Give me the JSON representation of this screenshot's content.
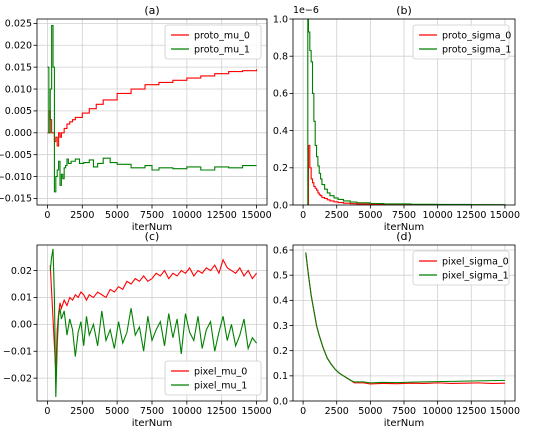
{
  "chart_data": [
    {
      "type": "line",
      "title": "(a)",
      "xlabel": "iterNum",
      "ylabel": "",
      "xlim": [
        -750,
        15750
      ],
      "ylim": [
        -0.0165,
        0.026
      ],
      "xticks": [
        0,
        2500,
        5000,
        7500,
        10000,
        12500,
        15000
      ],
      "yticks": [
        -0.015,
        -0.01,
        -0.005,
        0.0,
        0.005,
        0.01,
        0.015,
        0.02,
        0.025
      ],
      "ytick_labels": [
        "−0.015",
        "−0.010",
        "−0.005",
        "0.000",
        "0.005",
        "0.010",
        "0.015",
        "0.020",
        "0.025"
      ],
      "scale_label": "",
      "grid": true,
      "step": true,
      "legend": "upper right",
      "series": [
        {
          "name": "proto_mu_0",
          "color": "#ff0000",
          "x": [
            0,
            100,
            200,
            300,
            400,
            500,
            600,
            700,
            800,
            900,
            1000,
            1200,
            1400,
            1600,
            1800,
            2000,
            2500,
            3000,
            3500,
            4000,
            5000,
            6000,
            7000,
            8000,
            9000,
            10000,
            11000,
            12000,
            13000,
            14000,
            15000
          ],
          "y": [
            0.0,
            0.005,
            0.003,
            0.0,
            0.0,
            -0.002,
            -0.001,
            -0.003,
            0.0,
            -0.001,
            0.0,
            0.001,
            0.002,
            0.0025,
            0.003,
            0.0035,
            0.0045,
            0.0055,
            0.0065,
            0.0075,
            0.009,
            0.01,
            0.011,
            0.0115,
            0.012,
            0.0125,
            0.013,
            0.0135,
            0.014,
            0.0142,
            0.0145
          ]
        },
        {
          "name": "proto_mu_1",
          "color": "#008000",
          "x": [
            0,
            100,
            200,
            300,
            400,
            500,
            600,
            700,
            800,
            900,
            1000,
            1100,
            1200,
            1300,
            1400,
            1500,
            1700,
            2000,
            2300,
            2600,
            3000,
            3300,
            3600,
            4000,
            4500,
            5000,
            6000,
            7000,
            7500,
            8000,
            9000,
            10000,
            11000,
            12000,
            13000,
            14000,
            15000
          ],
          "y": [
            0.015,
            0.0,
            0.01,
            0.0245,
            0.015,
            -0.0135,
            -0.01,
            -0.0085,
            -0.0065,
            -0.012,
            -0.0095,
            -0.0105,
            -0.008,
            -0.0075,
            -0.006,
            -0.007,
            -0.0065,
            -0.006,
            -0.007,
            -0.0068,
            -0.0062,
            -0.0078,
            -0.007,
            -0.0058,
            -0.0068,
            -0.0072,
            -0.008,
            -0.0075,
            -0.0085,
            -0.008,
            -0.0082,
            -0.0078,
            -0.0085,
            -0.0078,
            -0.008,
            -0.0075,
            -0.0075
          ]
        }
      ]
    },
    {
      "type": "line",
      "title": "(b)",
      "xlabel": "iterNum",
      "ylabel": "",
      "xlim": [
        -750,
        15750
      ],
      "ylim": [
        0,
        1.0
      ],
      "xticks": [
        0,
        2500,
        5000,
        7500,
        10000,
        12500,
        15000
      ],
      "yticks": [
        0.0,
        0.2,
        0.4,
        0.6,
        0.8,
        1.0
      ],
      "ytick_labels": [
        "0.0",
        "0.2",
        "0.4",
        "0.6",
        "0.8",
        "1.0"
      ],
      "scale_label": "1e−6",
      "grid": true,
      "step": true,
      "legend": "upper right",
      "series": [
        {
          "name": "proto_sigma_0",
          "color": "#ff0000",
          "x": [
            300,
            400,
            500,
            600,
            700,
            800,
            900,
            1000,
            1100,
            1200,
            1300,
            1400,
            1600,
            1800,
            2000,
            2300,
            2600,
            3000,
            3500,
            4000,
            5000,
            6000,
            8000,
            10000,
            12500,
            15000
          ],
          "y": [
            0.0,
            0.32,
            0.2,
            0.14,
            0.12,
            0.1,
            0.09,
            0.08,
            0.065,
            0.055,
            0.05,
            0.04,
            0.035,
            0.028,
            0.022,
            0.017,
            0.013,
            0.01,
            0.007,
            0.005,
            0.003,
            0.002,
            0.001,
            0.0008,
            0.0005,
            0.0003
          ]
        },
        {
          "name": "proto_sigma_1",
          "color": "#008000",
          "x": [
            300,
            350,
            400,
            500,
            600,
            700,
            800,
            900,
            1000,
            1100,
            1200,
            1300,
            1400,
            1600,
            1800,
            2000,
            2300,
            2600,
            3000,
            3500,
            4000,
            5000,
            6000,
            8000,
            10000,
            12500,
            15000
          ],
          "y": [
            0.0,
            1.0,
            0.93,
            0.83,
            0.77,
            0.6,
            0.45,
            0.32,
            0.26,
            0.21,
            0.17,
            0.14,
            0.11,
            0.085,
            0.065,
            0.05,
            0.038,
            0.03,
            0.022,
            0.016,
            0.012,
            0.008,
            0.006,
            0.004,
            0.003,
            0.002,
            0.0015
          ]
        }
      ]
    },
    {
      "type": "line",
      "title": "(c)",
      "xlabel": "iterNum",
      "ylabel": "",
      "xlim": [
        -750,
        15750
      ],
      "ylim": [
        -0.0285,
        0.0295
      ],
      "xticks": [
        0,
        2500,
        5000,
        7500,
        10000,
        12500,
        15000
      ],
      "yticks": [
        -0.02,
        -0.01,
        0.0,
        0.01,
        0.02
      ],
      "ytick_labels": [
        "−0.02",
        "−0.01",
        "0.00",
        "0.01",
        "0.02"
      ],
      "scale_label": "",
      "grid": true,
      "step": false,
      "legend": "lower right",
      "series": [
        {
          "name": "pixel_mu_0",
          "color": "#ff0000",
          "x": [
            200,
            300,
            400,
            500,
            600,
            700,
            800,
            900,
            1000,
            1200,
            1400,
            1600,
            1800,
            2000,
            2200,
            2400,
            2600,
            2800,
            3000,
            3300,
            3600,
            3900,
            4200,
            4500,
            4800,
            5100,
            5400,
            5700,
            6000,
            6300,
            6600,
            6900,
            7200,
            7500,
            7800,
            8100,
            8400,
            8700,
            9000,
            9300,
            9600,
            9900,
            10200,
            10500,
            10800,
            11100,
            11400,
            11700,
            12000,
            12300,
            12600,
            12900,
            13200,
            13500,
            13800,
            14100,
            14400,
            14700,
            15000
          ],
          "y": [
            0.022,
            0.012,
            0.002,
            -0.008,
            -0.018,
            -0.002,
            0.004,
            0.008,
            0.006,
            0.009,
            0.007,
            0.01,
            0.009,
            0.011,
            0.01,
            0.012,
            0.011,
            0.009,
            0.011,
            0.01,
            0.012,
            0.011,
            0.01,
            0.013,
            0.012,
            0.014,
            0.013,
            0.016,
            0.015,
            0.017,
            0.016,
            0.018,
            0.016,
            0.017,
            0.019,
            0.018,
            0.02,
            0.017,
            0.019,
            0.018,
            0.02,
            0.019,
            0.021,
            0.018,
            0.02,
            0.019,
            0.021,
            0.02,
            0.022,
            0.019,
            0.024,
            0.021,
            0.02,
            0.019,
            0.021,
            0.018,
            0.02,
            0.017,
            0.019
          ]
        },
        {
          "name": "pixel_mu_1",
          "color": "#008000",
          "x": [
            200,
            300,
            400,
            500,
            600,
            700,
            800,
            900,
            1000,
            1200,
            1400,
            1600,
            1800,
            2000,
            2200,
            2400,
            2600,
            2800,
            3000,
            3300,
            3600,
            3900,
            4200,
            4500,
            4800,
            5100,
            5400,
            5700,
            6000,
            6300,
            6600,
            6900,
            7200,
            7500,
            7800,
            8100,
            8400,
            8700,
            9000,
            9300,
            9600,
            9900,
            10200,
            10500,
            10800,
            11100,
            11400,
            11700,
            12000,
            12300,
            12600,
            12900,
            13200,
            13500,
            13800,
            14100,
            14400,
            14700,
            15000
          ],
          "y": [
            0.02,
            0.025,
            0.028,
            0.01,
            -0.027,
            -0.008,
            0.003,
            0.006,
            0.002,
            0.005,
            -0.004,
            0.002,
            -0.002,
            -0.012,
            -0.003,
            0.001,
            -0.008,
            0.003,
            -0.004,
            0.0,
            -0.008,
            0.005,
            -0.006,
            -0.002,
            -0.009,
            0.001,
            -0.007,
            -0.003,
            0.006,
            -0.004,
            -0.001,
            -0.01,
            0.003,
            -0.006,
            -0.002,
            0.001,
            -0.008,
            0.004,
            -0.005,
            0.002,
            -0.011,
            0.004,
            -0.003,
            -0.006,
            0.003,
            -0.009,
            -0.002,
            0.001,
            -0.01,
            -0.003,
            0.003,
            -0.006,
            0.0,
            -0.008,
            -0.004,
            0.002,
            -0.009,
            -0.005,
            -0.007
          ]
        }
      ]
    },
    {
      "type": "line",
      "title": "(d)",
      "xlabel": "iterNum",
      "ylabel": "",
      "xlim": [
        -750,
        15750
      ],
      "ylim": [
        0.0,
        0.62
      ],
      "xticks": [
        0,
        2500,
        5000,
        7500,
        10000,
        12500,
        15000
      ],
      "yticks": [
        0.0,
        0.1,
        0.2,
        0.3,
        0.4,
        0.5,
        0.6
      ],
      "ytick_labels": [
        "0.0",
        "0.1",
        "0.2",
        "0.3",
        "0.4",
        "0.5",
        "0.6"
      ],
      "scale_label": "",
      "grid": true,
      "step": false,
      "legend": "upper right",
      "series": [
        {
          "name": "pixel_sigma_0",
          "color": "#ff0000",
          "x": [
            200,
            400,
            600,
            800,
            1000,
            1200,
            1500,
            1800,
            2100,
            2400,
            2700,
            3000,
            3300,
            3600,
            3800,
            4500,
            5000,
            6000,
            7000,
            8000,
            9000,
            10000,
            11000,
            12000,
            13000,
            14000,
            15000
          ],
          "y": [
            0.59,
            0.5,
            0.42,
            0.36,
            0.3,
            0.26,
            0.21,
            0.17,
            0.145,
            0.125,
            0.11,
            0.1,
            0.09,
            0.08,
            0.072,
            0.072,
            0.068,
            0.07,
            0.069,
            0.071,
            0.07,
            0.072,
            0.07,
            0.071,
            0.072,
            0.07,
            0.071
          ]
        },
        {
          "name": "pixel_sigma_1",
          "color": "#008000",
          "x": [
            200,
            400,
            600,
            800,
            1000,
            1200,
            1500,
            1800,
            2100,
            2400,
            2700,
            3000,
            3300,
            3600,
            3800,
            4500,
            5000,
            6000,
            7000,
            8000,
            9000,
            10000,
            11000,
            12000,
            13000,
            14000,
            15000
          ],
          "y": [
            0.59,
            0.5,
            0.42,
            0.36,
            0.3,
            0.26,
            0.21,
            0.17,
            0.145,
            0.125,
            0.11,
            0.1,
            0.09,
            0.08,
            0.076,
            0.076,
            0.072,
            0.074,
            0.073,
            0.075,
            0.076,
            0.077,
            0.078,
            0.079,
            0.08,
            0.081,
            0.082
          ]
        }
      ]
    }
  ]
}
